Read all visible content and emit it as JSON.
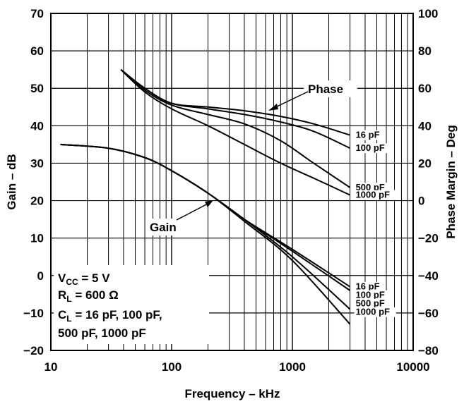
{
  "chart_data": {
    "type": "line",
    "title": "",
    "xlabel": "Frequency – kHz",
    "ylabel_left": "Gain – dB",
    "ylabel_right": "Phase Margin – Deg",
    "x_scale": "log",
    "xlim": [
      10,
      10000
    ],
    "ylim_left": [
      -20,
      70
    ],
    "ylim_right": [
      -80,
      100
    ],
    "grid": true,
    "x_ticks": [
      "10",
      "100",
      "1000",
      "10000"
    ],
    "y_ticks_left": [
      "70",
      "60",
      "50",
      "40",
      "30",
      "20",
      "10",
      "0",
      "−10",
      "−20"
    ],
    "y_ticks_right": [
      "100",
      "80",
      "60",
      "40",
      "20",
      "0",
      "−20",
      "−40",
      "−60",
      "−80"
    ],
    "annotations": {
      "phase": "Phase",
      "gain": "Gain"
    },
    "conditions": {
      "vcc": {
        "main": "V",
        "sub": "CC",
        "rest": " = 5 V"
      },
      "rl": {
        "main": "R",
        "sub": "L",
        "rest": " = 600 Ω"
      },
      "cl_line1": {
        "main": "C",
        "sub": "L",
        "rest": " = 16 pF, 100 pF,"
      },
      "cl_line2": "500 pF, 1000 pF"
    },
    "series": [
      {
        "name": "Phase 16 pF",
        "group": "phase",
        "label": "16 pF",
        "points": [
          [
            38,
            70
          ],
          [
            60,
            60
          ],
          [
            100,
            52
          ],
          [
            200,
            50
          ],
          [
            400,
            48
          ],
          [
            800,
            45
          ],
          [
            1500,
            41
          ],
          [
            3000,
            35
          ]
        ]
      },
      {
        "name": "Phase 100 pF",
        "group": "phase",
        "label": "100 pF",
        "points": [
          [
            38,
            70
          ],
          [
            60,
            60
          ],
          [
            100,
            52
          ],
          [
            200,
            49
          ],
          [
            400,
            46
          ],
          [
            800,
            42
          ],
          [
            1500,
            37
          ],
          [
            3000,
            28
          ]
        ]
      },
      {
        "name": "Phase 500 pF",
        "group": "phase",
        "label": "500 pF",
        "points": [
          [
            38,
            70
          ],
          [
            60,
            59
          ],
          [
            100,
            51
          ],
          [
            200,
            46
          ],
          [
            400,
            41
          ],
          [
            800,
            32
          ],
          [
            1500,
            20
          ],
          [
            3000,
            7
          ]
        ]
      },
      {
        "name": "Phase 1000 pF",
        "group": "phase",
        "label": "1000 pF",
        "points": [
          [
            38,
            70
          ],
          [
            60,
            58
          ],
          [
            100,
            49
          ],
          [
            200,
            40
          ],
          [
            400,
            30
          ],
          [
            800,
            20
          ],
          [
            1500,
            12
          ],
          [
            3000,
            3
          ]
        ]
      },
      {
        "name": "Gain 16 pF",
        "group": "gain",
        "label": "16 pF",
        "points": [
          [
            12,
            35
          ],
          [
            30,
            34
          ],
          [
            60,
            31.5
          ],
          [
            100,
            28
          ],
          [
            200,
            22
          ],
          [
            400,
            15
          ],
          [
            1000,
            7
          ],
          [
            3000,
            -3
          ]
        ]
      },
      {
        "name": "Gain 100 pF",
        "group": "gain",
        "label": "100 pF",
        "points": [
          [
            12,
            35
          ],
          [
            30,
            34
          ],
          [
            60,
            31.5
          ],
          [
            100,
            28
          ],
          [
            200,
            22
          ],
          [
            400,
            15
          ],
          [
            1000,
            6.5
          ],
          [
            3000,
            -4
          ]
        ]
      },
      {
        "name": "Gain 500 pF",
        "group": "gain",
        "label": "500 pF",
        "points": [
          [
            12,
            35
          ],
          [
            30,
            34
          ],
          [
            60,
            31.5
          ],
          [
            100,
            28
          ],
          [
            200,
            22
          ],
          [
            400,
            15
          ],
          [
            1000,
            5
          ],
          [
            3000,
            -9
          ]
        ]
      },
      {
        "name": "Gain 1000 pF",
        "group": "gain",
        "label": "1000 pF",
        "points": [
          [
            12,
            35
          ],
          [
            30,
            34
          ],
          [
            60,
            31.5
          ],
          [
            100,
            28
          ],
          [
            200,
            22
          ],
          [
            400,
            14.5
          ],
          [
            1000,
            4
          ],
          [
            3000,
            -13
          ]
        ]
      }
    ],
    "colors": {
      "line": "#000000",
      "grid": "#000000",
      "background": "#ffffff"
    }
  }
}
